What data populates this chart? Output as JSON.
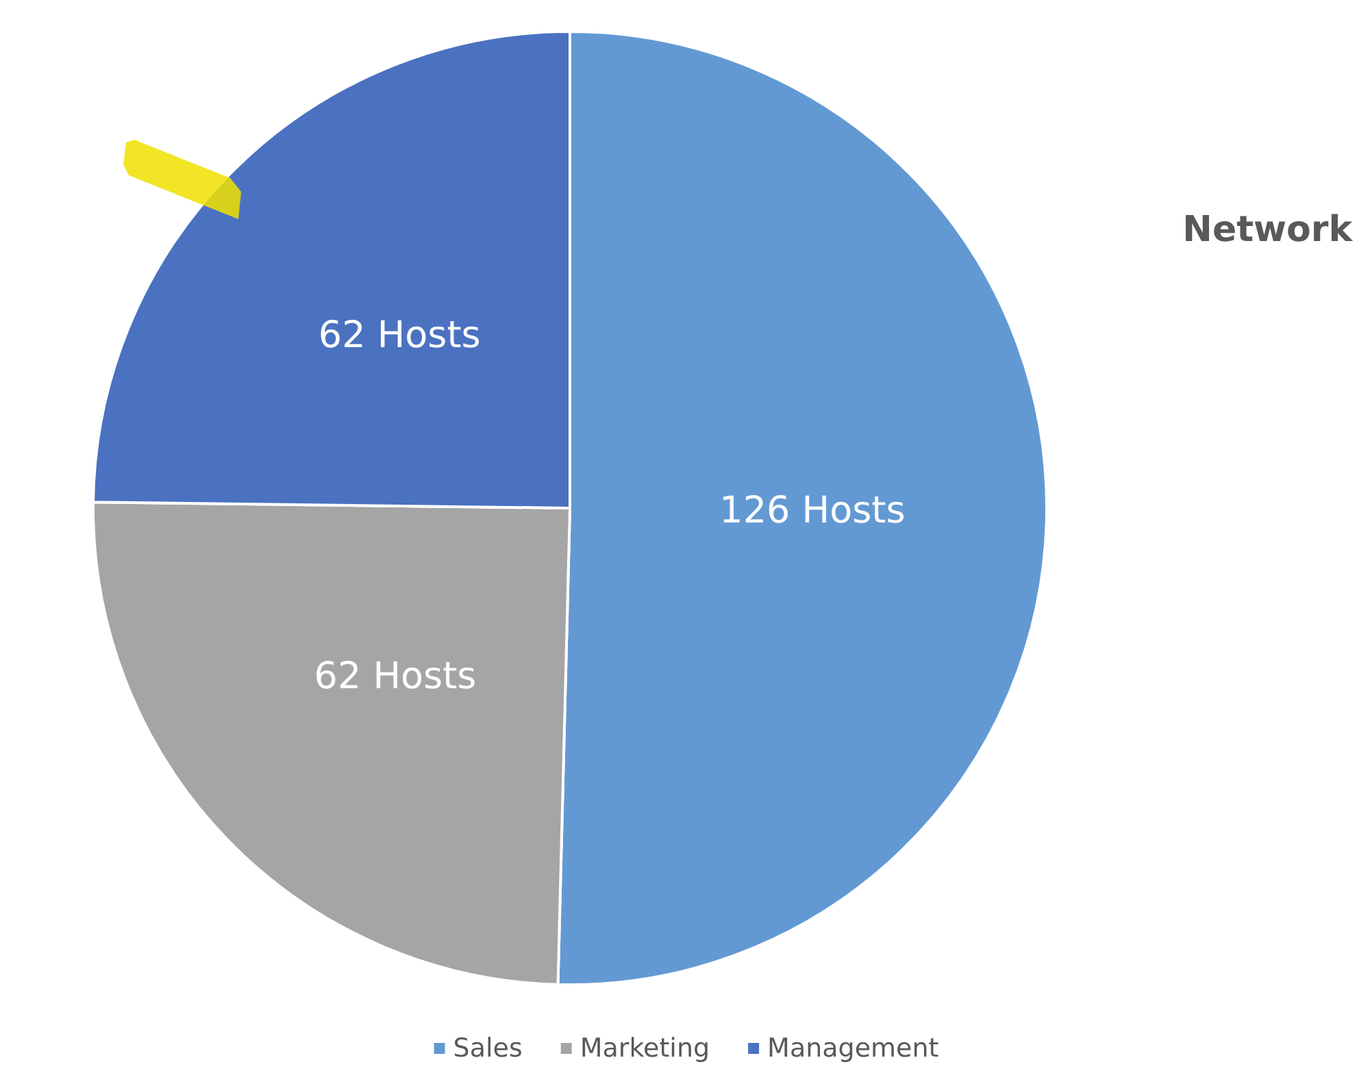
{
  "chart_data": {
    "type": "pie",
    "title": "Network",
    "categories": [
      "Sales",
      "Marketing",
      "Management"
    ],
    "values": [
      126,
      62,
      62
    ],
    "colors": [
      "#6399d3",
      "#a5a5a5",
      "#4a72c0"
    ],
    "value_labels": [
      "126 Hosts",
      "62 Hosts",
      "62 Hosts"
    ],
    "legend": "bottom"
  }
}
